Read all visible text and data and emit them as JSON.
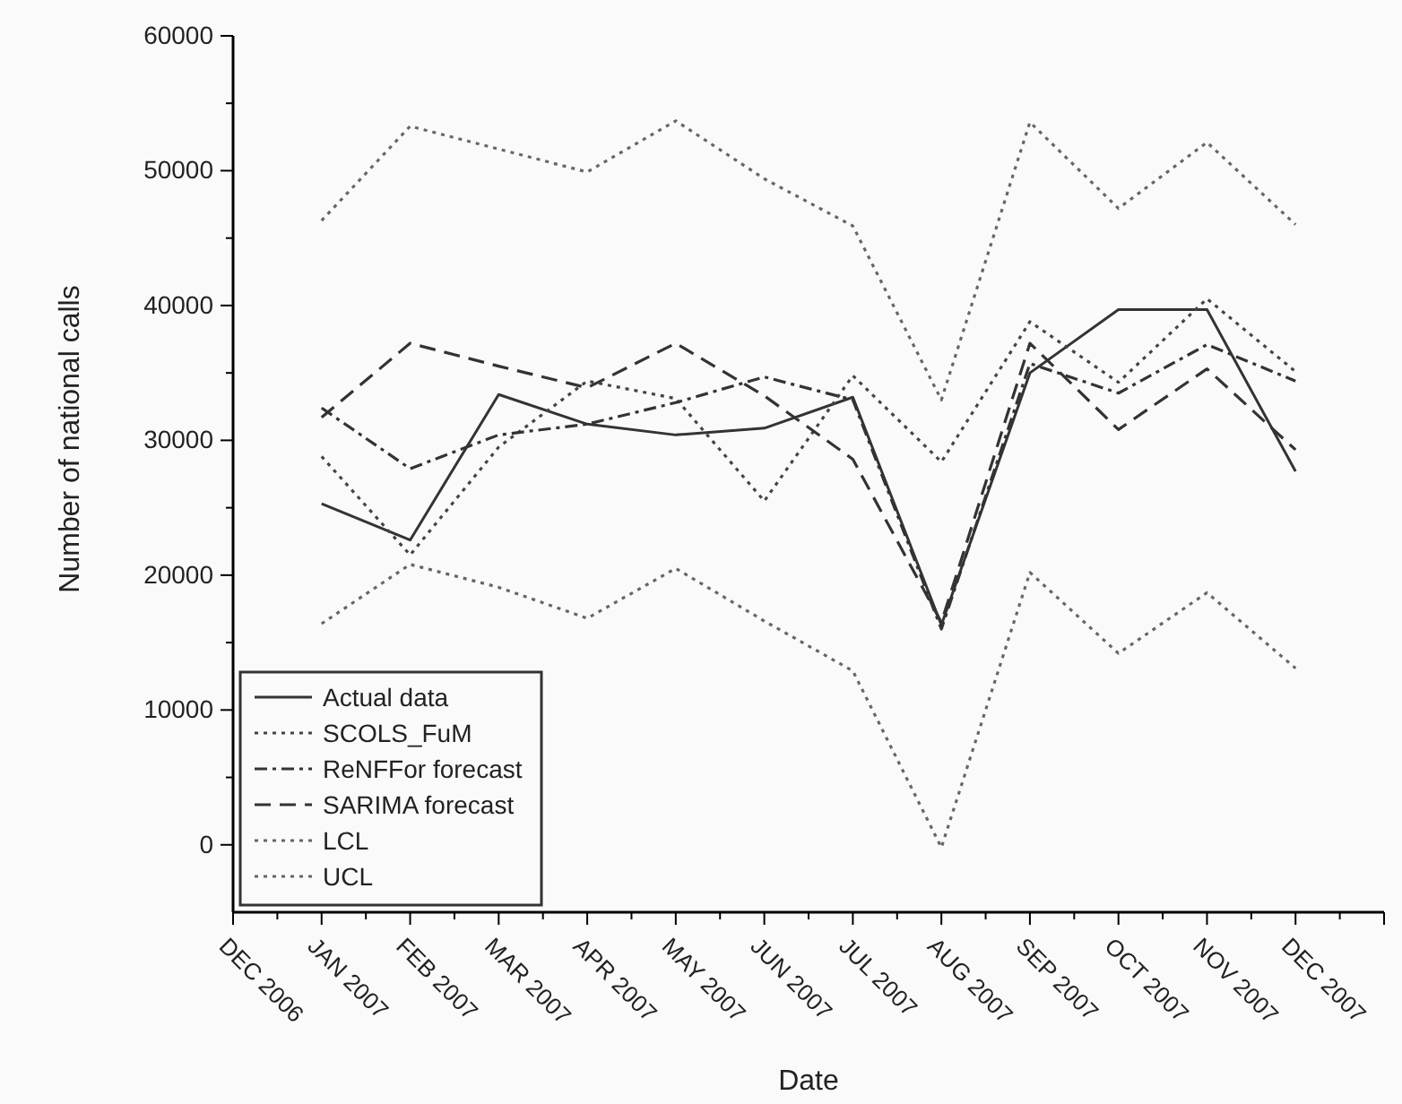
{
  "chart_data": {
    "type": "line",
    "xlabel": "Date",
    "ylabel": "Number of national calls",
    "categories": [
      "DEC 2006",
      "JAN 2007",
      "FEB 2007",
      "MAR 2007",
      "APR 2007",
      "MAY 2007",
      "JUN 2007",
      "JUL 2007",
      "AUG 2007",
      "SEP 2007",
      "OCT 2007",
      "NOV 2007",
      "DEC 2007",
      null
    ],
    "series": [
      {
        "name": "Actual data",
        "color": "#333333",
        "line_style": "solid",
        "values": [
          null,
          25300,
          22600,
          33400,
          31200,
          30400,
          30900,
          33200,
          16300,
          35000,
          39700,
          39700,
          27700,
          null
        ]
      },
      {
        "name": "SCOLS_FuM",
        "color": "#444444",
        "line_style": "dotted",
        "values": [
          null,
          28800,
          21500,
          29500,
          34400,
          33100,
          25500,
          34800,
          28400,
          38800,
          34300,
          40500,
          35100,
          null
        ]
      },
      {
        "name": "ReNFFor forecast",
        "color": "#333333",
        "line_style": "dashdot",
        "values": [
          null,
          32400,
          27900,
          30400,
          31200,
          32800,
          34700,
          33000,
          16000,
          35700,
          33500,
          37100,
          34400,
          null
        ]
      },
      {
        "name": "SARIMA forecast",
        "color": "#333333",
        "line_style": "dashed",
        "values": [
          null,
          31700,
          37200,
          35500,
          33900,
          37200,
          33300,
          28600,
          16500,
          37200,
          30800,
          35300,
          29300,
          null
        ]
      },
      {
        "name": "LCL",
        "color": "#666666",
        "line_style": "dotted",
        "values": [
          null,
          16400,
          20800,
          19100,
          16800,
          20500,
          16600,
          12900,
          -200,
          20200,
          14200,
          18700,
          13100,
          null
        ]
      },
      {
        "name": "UCL",
        "color": "#666666",
        "line_style": "dotted",
        "values": [
          null,
          46300,
          53300,
          51600,
          49900,
          53700,
          49400,
          45900,
          33000,
          53600,
          47200,
          52100,
          46000,
          null
        ]
      }
    ],
    "ylim": [
      -5000,
      60000
    ],
    "yticks": [
      0,
      {
        "value": 5000,
        "label": null
      },
      10000,
      {
        "value": 15000,
        "label": null
      },
      20000,
      {
        "value": 25000,
        "label": null
      },
      30000,
      {
        "value": 35000,
        "label": null
      },
      40000,
      {
        "value": 45000,
        "label": null
      },
      50000,
      {
        "value": 55000,
        "label": null
      },
      60000
    ],
    "grid": false,
    "legend": "bottom left",
    "marker": "none"
  }
}
